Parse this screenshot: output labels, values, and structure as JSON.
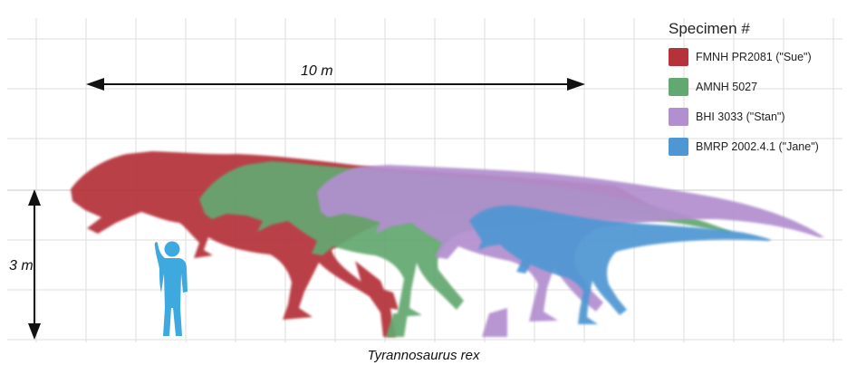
{
  "title": "",
  "caption": "Tyrannosaurus rex",
  "legend": {
    "title": "Specimen #",
    "items": [
      {
        "label": "FMNH PR2081 (\"Sue\")",
        "color": "#b5323a"
      },
      {
        "label": "AMNH 5027",
        "color": "#63a870"
      },
      {
        "label": "BHI 3033 (\"Stan\")",
        "color": "#b28fcf"
      },
      {
        "label": "BMRP 2002.4.1 (\"Jane\")",
        "color": "#4f97d3"
      }
    ]
  },
  "scale": {
    "horizontal_label": "10 m",
    "vertical_label": "3 m"
  },
  "human_color": "#3da9df"
}
